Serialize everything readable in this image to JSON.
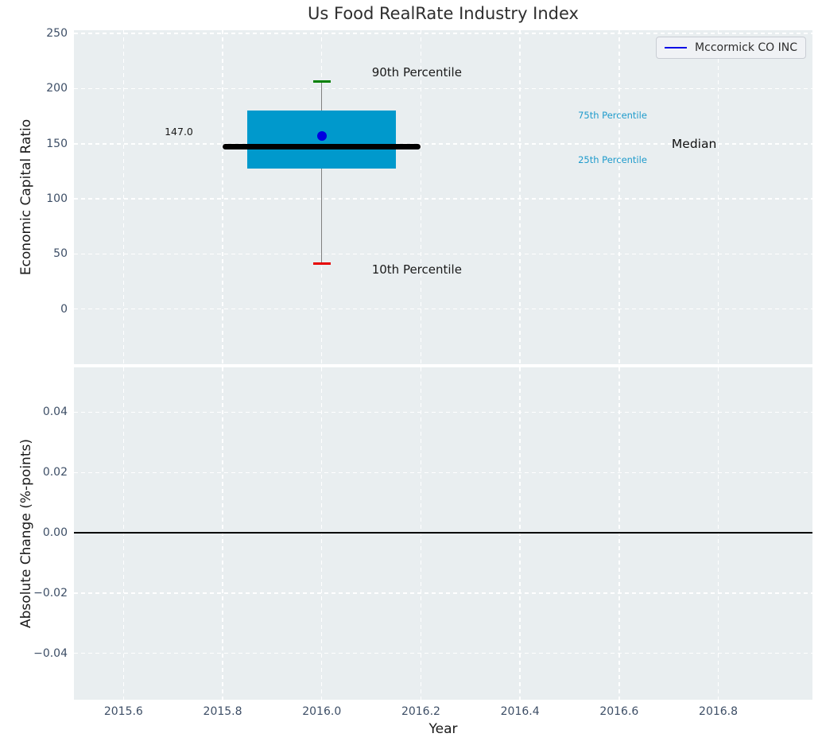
{
  "chart_data": [
    {
      "type": "boxplot",
      "title": "Us Food RealRate Industry Index",
      "ylabel": "Economic Capital Ratio",
      "legend_label": "Mccormick CO INC",
      "legend_position": "upper right",
      "grid": "dashed-white",
      "xlim": [
        2015.5,
        2016.99
      ],
      "ylim": [
        -50,
        253
      ],
      "x_ticks": [
        {
          "v": 2015.6,
          "label": "2015.6"
        },
        {
          "v": 2015.8,
          "label": "2015.8"
        },
        {
          "v": 2016.0,
          "label": "2016.0"
        },
        {
          "v": 2016.2,
          "label": "2016.2"
        },
        {
          "v": 2016.4,
          "label": "2016.4"
        },
        {
          "v": 2016.6,
          "label": "2016.6"
        },
        {
          "v": 2016.8,
          "label": "2016.8"
        }
      ],
      "y_ticks": [
        {
          "v": 250,
          "label": "250"
        },
        {
          "v": 200,
          "label": "200"
        },
        {
          "v": 150,
          "label": "150"
        },
        {
          "v": 100,
          "label": "100"
        },
        {
          "v": 50,
          "label": "50"
        },
        {
          "v": 0,
          "label": "0"
        }
      ],
      "series": {
        "name": "Mccormick CO INC",
        "x": 2016.0,
        "p10": 41.0,
        "p25": 127.5,
        "median": 147.0,
        "p75": 180.0,
        "p90": 206.5,
        "company_value": 157.0,
        "box_halfwidth": 0.15,
        "median_halfwidth": 0.2,
        "cap_halfwidth": 0.018
      },
      "annotations": [
        {
          "text": "90th Percentile",
          "x": 2016.101,
          "y": 220.5,
          "size": 15,
          "color": "#1a1a1a"
        },
        {
          "text": "10th Percentile",
          "x": 2016.101,
          "y": 41.8,
          "size": 15,
          "color": "#1a1a1a"
        },
        {
          "text": "147.0",
          "x": 2015.683,
          "y": 165.7,
          "size": 12.5,
          "color": "#1a1a1a"
        },
        {
          "text": "75th Percentile",
          "x": 2016.517,
          "y": 180.1,
          "size": 11.5,
          "color": "#1F9BCC"
        },
        {
          "text": "25th Percentile",
          "x": 2016.517,
          "y": 139.8,
          "size": 11.5,
          "color": "#1F9BCC"
        },
        {
          "text": "Median",
          "x": 2016.706,
          "y": 155.6,
          "size": 15.5,
          "color": "#111111"
        }
      ],
      "colors": {
        "box_fill": "#0099CC",
        "median_line": "#000000",
        "whisker": "#808080",
        "cap_top": "#008000",
        "cap_bottom": "#E60000",
        "company_dot": "#0000E0",
        "legend_line": "#0A0AE6",
        "plot_background": "#E9EEF0",
        "tick_label": "#3D4E66",
        "percentile_label_cyan": "#1F9BCC"
      }
    },
    {
      "type": "line",
      "ylabel": "Absolute Change (%-points)",
      "xlabel": "Year",
      "grid": "dashed-white",
      "xlim": [
        2015.5,
        2016.99
      ],
      "ylim": [
        -0.0554,
        0.0549
      ],
      "x_ticks": [
        {
          "v": 2015.6,
          "label": "2015.6"
        },
        {
          "v": 2015.8,
          "label": "2015.8"
        },
        {
          "v": 2016.0,
          "label": "2016.0"
        },
        {
          "v": 2016.2,
          "label": "2016.2"
        },
        {
          "v": 2016.4,
          "label": "2016.4"
        },
        {
          "v": 2016.6,
          "label": "2016.6"
        },
        {
          "v": 2016.8,
          "label": "2016.8"
        }
      ],
      "y_ticks": [
        {
          "v": 0.04,
          "label": "0.04"
        },
        {
          "v": 0.02,
          "label": "0.02"
        },
        {
          "v": 0.0,
          "label": "0.00"
        },
        {
          "v": -0.02,
          "label": "−0.02"
        },
        {
          "v": -0.04,
          "label": "−0.04"
        }
      ],
      "zero_line": 0.0,
      "series": []
    }
  ]
}
